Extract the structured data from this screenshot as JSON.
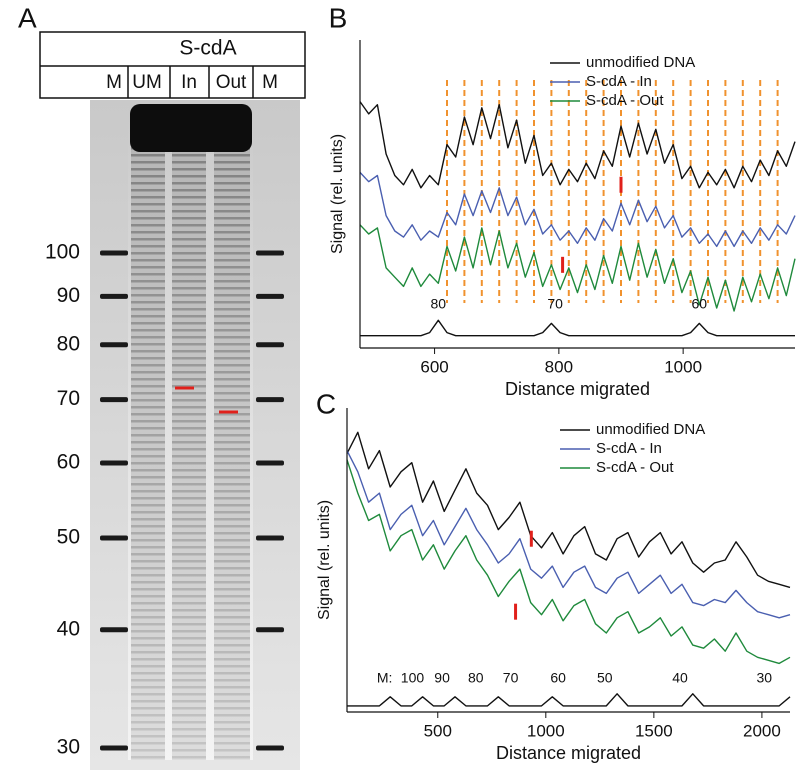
{
  "chart_data": [
    {
      "type": "gel",
      "panel": "A",
      "title": "S-cdA",
      "lanes": [
        "M",
        "UM",
        "In",
        "Out",
        "M"
      ],
      "ladder": [
        100,
        90,
        80,
        70,
        60,
        50,
        40,
        30
      ],
      "ylim": [
        100,
        30
      ],
      "log": true,
      "color": "#1a1a1a"
    },
    {
      "type": "line",
      "panel": "B",
      "xlabel": "Distance migrated",
      "ylabel": "Signal (rel. units)",
      "xlim": [
        480,
        1180
      ],
      "xticks": [
        600,
        800,
        1000
      ],
      "ylim": [
        0,
        10
      ],
      "legend": "upper right",
      "x": [
        480,
        494,
        508,
        522,
        536,
        550,
        564,
        578,
        592,
        606,
        620,
        634,
        648,
        662,
        676,
        690,
        704,
        718,
        732,
        746,
        760,
        774,
        788,
        802,
        816,
        830,
        844,
        858,
        872,
        886,
        900,
        914,
        928,
        942,
        956,
        970,
        984,
        998,
        1012,
        1026,
        1040,
        1054,
        1068,
        1082,
        1096,
        1110,
        1124,
        1138,
        1152,
        1166,
        1180
      ],
      "series": [
        {
          "name": "unmodified DNA",
          "color": "#111111",
          "values": [
            8.0,
            7.6,
            7.9,
            6.3,
            5.6,
            5.3,
            5.8,
            5.2,
            5.6,
            5.3,
            6.6,
            6.2,
            7.5,
            6.6,
            7.8,
            6.8,
            7.9,
            6.5,
            7.4,
            6.0,
            6.9,
            5.6,
            6.0,
            5.3,
            5.8,
            5.4,
            6.0,
            5.5,
            6.4,
            5.9,
            7.2,
            6.2,
            7.3,
            6.3,
            7.1,
            6.0,
            6.6,
            5.5,
            5.9,
            5.2,
            5.7,
            5.3,
            5.8,
            5.2,
            5.9,
            5.4,
            6.1,
            5.6,
            6.4,
            5.9,
            6.7
          ]
        },
        {
          "name": "S-cdA - In",
          "color": "#4a5fb0",
          "values": [
            5.7,
            5.4,
            5.6,
            4.3,
            3.8,
            3.6,
            4.0,
            3.5,
            3.8,
            3.6,
            4.4,
            4.0,
            5.0,
            4.3,
            5.1,
            4.4,
            5.2,
            4.3,
            4.9,
            4.0,
            4.5,
            3.7,
            4.0,
            3.5,
            3.8,
            3.4,
            3.9,
            3.5,
            4.2,
            3.8,
            4.7,
            4.0,
            4.8,
            4.1,
            4.6,
            3.9,
            4.3,
            3.6,
            3.9,
            3.4,
            3.7,
            3.3,
            3.8,
            3.3,
            3.8,
            3.4,
            3.9,
            3.5,
            4.0,
            3.7,
            4.3
          ]
        },
        {
          "name": "S-cdA - Out",
          "color": "#1f8a3c",
          "values": [
            4.0,
            3.7,
            3.9,
            2.6,
            2.3,
            2.0,
            2.6,
            2.0,
            2.4,
            2.1,
            3.3,
            2.5,
            3.6,
            2.6,
            3.9,
            2.7,
            3.8,
            2.6,
            3.4,
            2.3,
            3.1,
            2.0,
            2.7,
            1.9,
            2.6,
            1.8,
            2.7,
            1.9,
            3.0,
            2.1,
            3.3,
            2.2,
            3.4,
            2.3,
            3.2,
            2.1,
            2.9,
            1.8,
            2.5,
            1.4,
            2.3,
            1.3,
            2.2,
            1.2,
            2.3,
            1.5,
            2.4,
            1.6,
            2.6,
            1.7,
            2.9
          ]
        },
        {
          "color": "#111111",
          "values": [
            0.4,
            0.4,
            0.4,
            0.4,
            0.4,
            0.4,
            0.4,
            0.4,
            0.5,
            0.9,
            0.5,
            0.4,
            0.4,
            0.4,
            0.4,
            0.4,
            0.4,
            0.4,
            0.4,
            0.4,
            0.4,
            0.5,
            0.8,
            0.5,
            0.4,
            0.4,
            0.4,
            0.4,
            0.4,
            0.4,
            0.4,
            0.4,
            0.4,
            0.4,
            0.4,
            0.4,
            0.4,
            0.4,
            0.5,
            0.8,
            0.5,
            0.4,
            0.4,
            0.4,
            0.4,
            0.4,
            0.4,
            0.4,
            0.4,
            0.4,
            0.4
          ]
        }
      ],
      "guides": {
        "color": "#f0922e",
        "x": [
          620,
          648,
          676,
          704,
          732,
          760,
          788,
          816,
          844,
          872,
          900,
          928,
          956,
          984,
          1012,
          1040,
          1068,
          1096,
          1124,
          1152
        ]
      },
      "highlights": [
        {
          "x": 900,
          "y": 5.3,
          "color": "#e0201b"
        },
        {
          "x": 806,
          "y": 2.7,
          "color": "#e0201b"
        }
      ],
      "annotations": [
        {
          "text": "80",
          "x": 606,
          "y": 1.4
        },
        {
          "text": "70",
          "x": 794,
          "y": 1.4
        },
        {
          "text": "60",
          "x": 1026,
          "y": 1.4
        }
      ]
    },
    {
      "type": "line",
      "panel": "C",
      "xlabel": "Distance migrated",
      "ylabel": "Signal (rel. units)",
      "xlim": [
        80,
        2130
      ],
      "xticks": [
        500,
        1000,
        1500,
        2000
      ],
      "ylim": [
        0,
        10
      ],
      "legend": "upper right",
      "x": [
        80,
        130,
        180,
        230,
        280,
        330,
        380,
        430,
        480,
        530,
        580,
        630,
        680,
        730,
        780,
        830,
        880,
        930,
        980,
        1030,
        1080,
        1130,
        1180,
        1230,
        1280,
        1330,
        1380,
        1430,
        1480,
        1530,
        1580,
        1630,
        1680,
        1730,
        1780,
        1830,
        1880,
        1930,
        1980,
        2030,
        2080,
        2130
      ],
      "series": [
        {
          "name": "unmodified DNA",
          "color": "#111111",
          "values": [
            8.5,
            9.2,
            8.0,
            8.6,
            7.4,
            7.9,
            8.2,
            6.9,
            7.6,
            6.6,
            7.3,
            8.0,
            7.2,
            6.8,
            6.0,
            6.4,
            6.9,
            5.8,
            5.4,
            5.9,
            5.2,
            5.8,
            6.1,
            5.2,
            5.0,
            5.7,
            5.9,
            5.1,
            5.6,
            5.9,
            5.2,
            5.6,
            4.9,
            4.6,
            4.9,
            5.0,
            5.6,
            5.1,
            4.5,
            4.3,
            4.2,
            4.1
          ]
        },
        {
          "name": "S-cdA - In",
          "color": "#4a5fb0",
          "values": [
            8.6,
            7.9,
            6.9,
            7.2,
            6.0,
            6.5,
            6.8,
            5.8,
            6.3,
            5.5,
            6.1,
            6.7,
            6.0,
            5.5,
            4.9,
            5.2,
            5.7,
            4.7,
            4.4,
            4.8,
            4.1,
            4.6,
            4.8,
            4.1,
            3.9,
            4.4,
            4.6,
            3.9,
            4.2,
            4.5,
            3.9,
            4.2,
            3.6,
            3.5,
            3.7,
            3.6,
            4.0,
            3.6,
            3.3,
            3.2,
            3.1,
            3.2
          ]
        },
        {
          "name": "S-cdA - Out",
          "color": "#1f8a3c",
          "values": [
            8.3,
            7.2,
            6.3,
            6.5,
            5.3,
            5.8,
            6.0,
            5.0,
            5.5,
            4.7,
            5.3,
            5.8,
            5.0,
            4.5,
            3.8,
            4.3,
            4.7,
            3.6,
            3.2,
            3.7,
            3.0,
            3.5,
            3.7,
            2.9,
            2.6,
            3.1,
            3.3,
            2.6,
            2.8,
            3.1,
            2.5,
            2.8,
            2.2,
            2.1,
            2.4,
            2.0,
            2.6,
            2.0,
            1.8,
            1.7,
            1.6,
            1.8
          ]
        },
        {
          "color": "#111111",
          "values": [
            0.2,
            0.2,
            0.2,
            0.2,
            0.5,
            0.2,
            0.2,
            0.5,
            0.2,
            0.2,
            0.5,
            0.2,
            0.2,
            0.2,
            0.5,
            0.2,
            0.2,
            0.2,
            0.2,
            0.5,
            0.2,
            0.2,
            0.2,
            0.2,
            0.2,
            0.6,
            0.2,
            0.2,
            0.2,
            0.2,
            0.2,
            0.2,
            0.6,
            0.2,
            0.2,
            0.2,
            0.2,
            0.2,
            0.2,
            0.2,
            0.2,
            0.5
          ]
        }
      ],
      "highlights": [
        {
          "x": 933,
          "y": 5.7,
          "color": "#e0201b"
        },
        {
          "x": 860,
          "y": 3.3,
          "color": "#e0201b"
        }
      ],
      "annotations": [
        {
          "text": "M:",
          "x": 254,
          "y": 1.1
        },
        {
          "text": "100",
          "x": 383,
          "y": 1.1
        },
        {
          "text": "90",
          "x": 520,
          "y": 1.1
        },
        {
          "text": "80",
          "x": 676,
          "y": 1.1
        },
        {
          "text": "70",
          "x": 837,
          "y": 1.1
        },
        {
          "text": "60",
          "x": 1057,
          "y": 1.1
        },
        {
          "text": "50",
          "x": 1273,
          "y": 1.1
        },
        {
          "text": "40",
          "x": 1621,
          "y": 1.1
        },
        {
          "text": "30",
          "x": 2011,
          "y": 1.1
        }
      ]
    }
  ]
}
